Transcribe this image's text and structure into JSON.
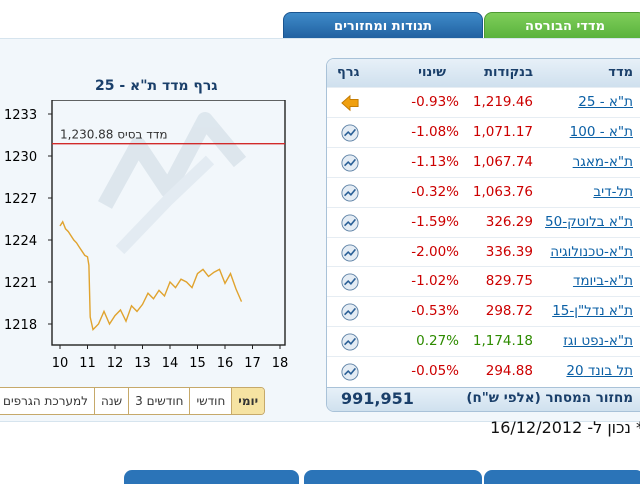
{
  "tabs": [
    {
      "label": "מדדי הבורסה",
      "active": true
    },
    {
      "label": "תנודות ומחזורים",
      "active": false
    }
  ],
  "colors": {
    "up": "#2e8b00",
    "down": "#cc0000",
    "link": "#0a5fa5",
    "line": "#e0a32e",
    "base_line": "#d22a2a"
  },
  "table": {
    "headers": {
      "name": "מדד",
      "value": "בנקודות",
      "change": "שינוי",
      "graph": "גרף"
    },
    "rows": [
      {
        "name": "ת\"א - 25",
        "value": "1,219.46",
        "change": "-0.93%",
        "direction": "down",
        "graph_icon": "arrow-left-icon"
      },
      {
        "name": "ת\"א - 100",
        "value": "1,071.17",
        "change": "-1.08%",
        "direction": "down",
        "graph_icon": "chart-icon"
      },
      {
        "name": "ת\"א-מאגר",
        "value": "1,067.74",
        "change": "-1.13%",
        "direction": "down",
        "graph_icon": "chart-icon"
      },
      {
        "name": "תל-דיב",
        "value": "1,063.76",
        "change": "-0.32%",
        "direction": "down",
        "graph_icon": "chart-icon"
      },
      {
        "name": "ת\"א בלוטק-50",
        "value": "326.29",
        "change": "-1.59%",
        "direction": "down",
        "graph_icon": "chart-icon"
      },
      {
        "name": "ת\"א-טכנולוגיה",
        "value": "336.39",
        "change": "-2.00%",
        "direction": "down",
        "graph_icon": "chart-icon"
      },
      {
        "name": "ת\"א-ביומד",
        "value": "829.75",
        "change": "-1.02%",
        "direction": "down",
        "graph_icon": "chart-icon"
      },
      {
        "name": "ת\"א נדל\"ן-15",
        "value": "298.72",
        "change": "-0.53%",
        "direction": "down",
        "graph_icon": "chart-icon"
      },
      {
        "name": "ת\"א-נפט וגז",
        "value": "1,174.18",
        "change": "0.27%",
        "direction": "up",
        "graph_icon": "chart-icon"
      },
      {
        "name": "תל בונד 20",
        "value": "294.88",
        "change": "-0.05%",
        "direction": "down",
        "graph_icon": "chart-icon"
      }
    ],
    "footer": {
      "label": "מחזור המסחר (אלפי ש\"ח)",
      "value": "991,951"
    }
  },
  "chart_data": {
    "type": "line",
    "title": "גרף מדד ת\"א - 25",
    "base_label": "1,230.88 מדד בסיס",
    "base_value": 1230.88,
    "x_ticks": [
      "10",
      "11",
      "12",
      "13",
      "14",
      "15",
      "16",
      "17",
      "18"
    ],
    "y_ticks": [
      "1233",
      "1230",
      "1227",
      "1224",
      "1221",
      "1218"
    ],
    "xlim": [
      10,
      18
    ],
    "ylim": [
      1216.5,
      1234.0
    ],
    "grid": false,
    "series": [
      {
        "x": [
          10.0,
          10.1,
          10.2,
          10.3,
          10.5,
          10.6,
          10.7,
          10.8,
          10.9,
          11.0,
          11.05,
          11.1,
          11.2,
          11.4,
          11.6,
          11.8,
          12.0,
          12.2,
          12.4,
          12.6,
          12.8,
          13.0,
          13.2,
          13.4,
          13.6,
          13.8,
          14.0,
          14.2,
          14.4,
          14.6,
          14.8,
          15.0,
          15.2,
          15.4,
          15.6,
          15.8,
          16.0,
          16.2,
          16.4,
          16.6
        ],
        "y": [
          1225.0,
          1225.3,
          1224.8,
          1224.6,
          1224.0,
          1223.8,
          1223.5,
          1223.2,
          1222.9,
          1222.8,
          1222.2,
          1218.5,
          1217.6,
          1218.0,
          1218.9,
          1218.0,
          1218.6,
          1219.0,
          1218.2,
          1219.3,
          1218.9,
          1219.4,
          1220.2,
          1219.8,
          1220.4,
          1220.0,
          1221.0,
          1220.6,
          1221.2,
          1221.0,
          1220.6,
          1221.6,
          1221.9,
          1221.4,
          1221.7,
          1221.9,
          1220.9,
          1221.6,
          1220.5,
          1219.6
        ]
      }
    ]
  },
  "range_buttons": [
    {
      "label": "יומי",
      "active": true
    },
    {
      "label": "חודשי",
      "active": false
    },
    {
      "label": "3 חודשים",
      "active": false
    },
    {
      "label": "שנה",
      "active": false
    },
    {
      "label": "למערכת הגרפים",
      "active": false
    }
  ],
  "date_note": "* נכון ל- 16/12/2012"
}
